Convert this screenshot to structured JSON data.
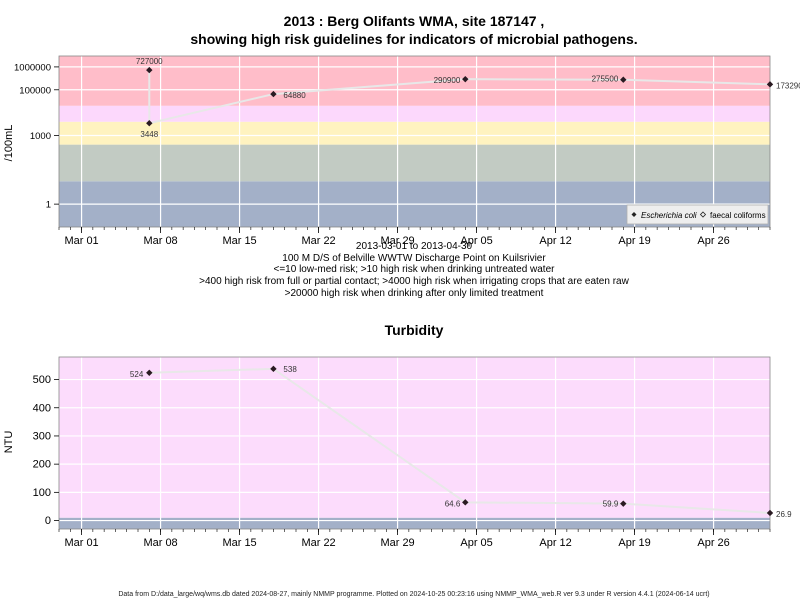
{
  "chart_data": [
    {
      "type": "line",
      "title_line1": "2013 : Berg Olifants WMA, site 187147 ,",
      "title_line2": "showing high risk guidelines for indicators of microbial pathogens.",
      "ylabel": "/100mL",
      "yscale": "log",
      "ytick_labels": [
        "1",
        "1000",
        "100000",
        "1000000"
      ],
      "ytick_values": [
        1,
        1000,
        100000,
        1000000
      ],
      "xtick_labels": [
        "Mar 01",
        "Mar 08",
        "Mar 15",
        "Mar 22",
        "Mar 29",
        "Apr 05",
        "Apr 12",
        "Apr 19",
        "Apr 26"
      ],
      "xtick_dates": [
        "2013-03-01",
        "2013-03-08",
        "2013-03-15",
        "2013-03-22",
        "2013-03-29",
        "2013-04-05",
        "2013-04-12",
        "2013-04-19",
        "2013-04-26"
      ],
      "xlim": [
        "2013-02-27",
        "2013-05-01"
      ],
      "ylim": [
        0.1,
        3000000
      ],
      "risk_bands": [
        {
          "from": 0.1,
          "to": 10,
          "color": "#a3b0c8"
        },
        {
          "from": 10,
          "to": 400,
          "color": "#c2cbc3"
        },
        {
          "from": 400,
          "to": 4000,
          "color": "#fff3c0"
        },
        {
          "from": 4000,
          "to": 20000,
          "color": "#fcd8fc"
        },
        {
          "from": 20000,
          "to": 3000000,
          "color": "#ffbdc9"
        }
      ],
      "series": [
        {
          "name": "Escherichia coli",
          "marker": "filled-diamond",
          "points": [
            {
              "x": "2013-03-07",
              "y": 727000,
              "label": "727000"
            },
            {
              "x": "2013-03-07",
              "y": 3448,
              "label": "3448"
            },
            {
              "x": "2013-03-18",
              "y": 64880,
              "label": "64880"
            },
            {
              "x": "2013-04-04",
              "y": 290900,
              "label": "290900"
            },
            {
              "x": "2013-04-18",
              "y": 275500,
              "label": "275500"
            },
            {
              "x": "2013-05-01",
              "y": 173290,
              "label": "173290"
            }
          ]
        },
        {
          "name": "faecal coliforms",
          "marker": "open-diamond",
          "points": []
        }
      ],
      "legend_position": "bottom-right",
      "annotations": [
        "2013-03-01 to 2013-04-30",
        "100 M D/S of Belville WWTW Discharge Point on Kuilsrivier",
        "<=10 low-med risk; >10 high risk when drinking untreated water",
        ">400 high risk from full or partial contact; >4000 high risk when irrigating crops that are eaten raw",
        ">20000 high risk when drinking after only limited treatment"
      ]
    },
    {
      "type": "line",
      "title": "Turbidity",
      "ylabel": "NTU",
      "ytick_labels": [
        "0",
        "100",
        "200",
        "300",
        "400",
        "500"
      ],
      "ytick_values": [
        0,
        100,
        200,
        300,
        400,
        500
      ],
      "xtick_labels": [
        "Mar 01",
        "Mar 08",
        "Mar 15",
        "Mar 22",
        "Mar 29",
        "Apr 05",
        "Apr 12",
        "Apr 19",
        "Apr 26"
      ],
      "xlim": [
        "2013-02-27",
        "2013-05-01"
      ],
      "ylim": [
        -30,
        580
      ],
      "risk_bands": [
        {
          "from": -30,
          "to": 10,
          "color": "#a3b0c8"
        },
        {
          "from": 10,
          "to": 580,
          "color": "#fcdcfc"
        }
      ],
      "series": [
        {
          "name": "",
          "marker": "filled-diamond",
          "points": [
            {
              "x": "2013-03-07",
              "y": 524,
              "label": "524"
            },
            {
              "x": "2013-03-18",
              "y": 538,
              "label": "538"
            },
            {
              "x": "2013-04-04",
              "y": 64.6,
              "label": "64.6"
            },
            {
              "x": "2013-04-18",
              "y": 59.9,
              "label": "59.9"
            },
            {
              "x": "2013-05-01",
              "y": 26.9,
              "label": "26.9"
            }
          ]
        }
      ]
    }
  ],
  "footer": "Data from D:/data_large/wq/wms.db dated 2024-08-27, mainly NMMP programme. Plotted on 2024-10-25 00:23:16 using NMMP_WMA_web.R ver 9.3 under R version 4.4.1 (2024-06-14 ucrt)"
}
